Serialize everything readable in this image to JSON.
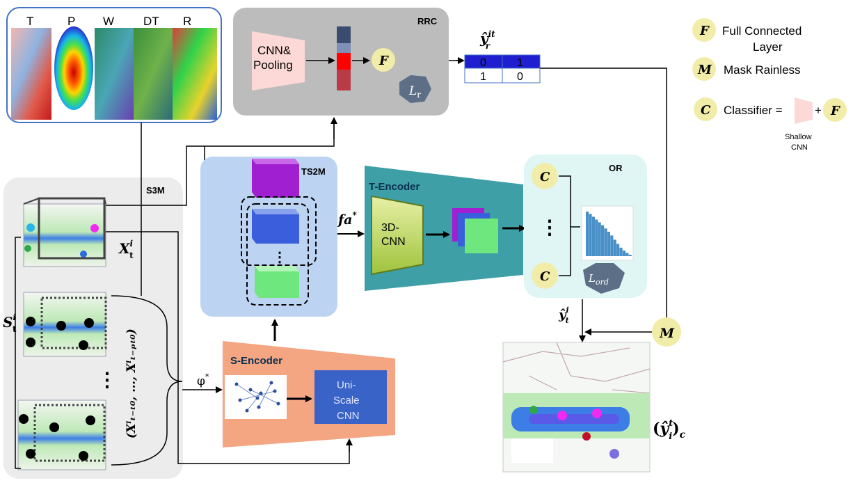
{
  "inputs": {
    "labels": [
      "T",
      "P",
      "W",
      "DT",
      "R"
    ]
  },
  "rrc": {
    "title": "RRC",
    "cnn_line1": "CNN&",
    "cnn_line2": "Pooling",
    "f_symbol": "F",
    "loss_base": "L",
    "loss_sub": "r"
  },
  "yr": {
    "label_base": "ŷ",
    "label_sup": "it",
    "label_sub": "r",
    "top_row": [
      "0",
      "1"
    ],
    "bottom_row": [
      "1",
      "0"
    ]
  },
  "legend": {
    "f_symbol": "F",
    "f_line1": "Full Connected",
    "f_line2": "Layer",
    "m_symbol": "M",
    "m_text": "Mask Rainless",
    "c_symbol": "C",
    "c_text": "Classifier =",
    "plus": "+",
    "shallow_line1": "Shallow",
    "shallow_line2": "CNN"
  },
  "s3m": {
    "title": "S3M",
    "x_base": "X",
    "x_sup": "i",
    "x_sub": "t",
    "s_base": "S",
    "s_sup": "i",
    "s_sub": "t",
    "seq_label": "(Xⁱₜ₋ₜ₀, …, Xⁱₜ₋ₚₜ₀)",
    "dots": "⋮"
  },
  "ts2m": {
    "title": "TS2M",
    "dots": "⋮"
  },
  "fa_label": "fa",
  "fa_sup": "*",
  "tencoder": {
    "title": "T-Encoder",
    "cnn_line1": "3D-",
    "cnn_line2": "CNN"
  },
  "or": {
    "title": "OR",
    "c_symbol": "C",
    "dots": "⋮",
    "loss_base": "L",
    "loss_sub": "ord",
    "histogram": [
      9.5,
      9.0,
      8.4,
      7.8,
      7.2,
      6.6,
      5.9,
      5.2,
      4.4,
      3.5,
      2.6,
      1.8,
      1.2,
      0.7,
      0.3
    ]
  },
  "yt": {
    "label_base": "ŷ",
    "label_sup": "i",
    "label_sub": "t"
  },
  "mask": {
    "symbol": "M"
  },
  "output": {
    "label_open": "(",
    "label_base": "ŷ",
    "label_sup": "t",
    "label_sub": "i",
    "label_close": ")",
    "label_outer_sub": "c"
  },
  "sencoder": {
    "title": "S-Encoder",
    "phi_label": "φ",
    "phi_sup": "*",
    "cnn_line1": "Uni-",
    "cnn_line2": "Scale",
    "cnn_line3": "CNN"
  },
  "colors": {
    "rrc_bg": "#bcbcbc",
    "ts2m_bg": "#bcd3f2",
    "tencoder_bg": "#3e9fa6",
    "or_bg": "#dff6f5",
    "sencoder_bg": "#f4a582",
    "unicnn_bg": "#3a63c8",
    "symbol_circle": "#f1eda8",
    "s3m_bg": "#ececec",
    "cube_top": "#a01fd0",
    "cube_mid": "#3b5fdc",
    "cube_bot": "#6ee87e"
  }
}
